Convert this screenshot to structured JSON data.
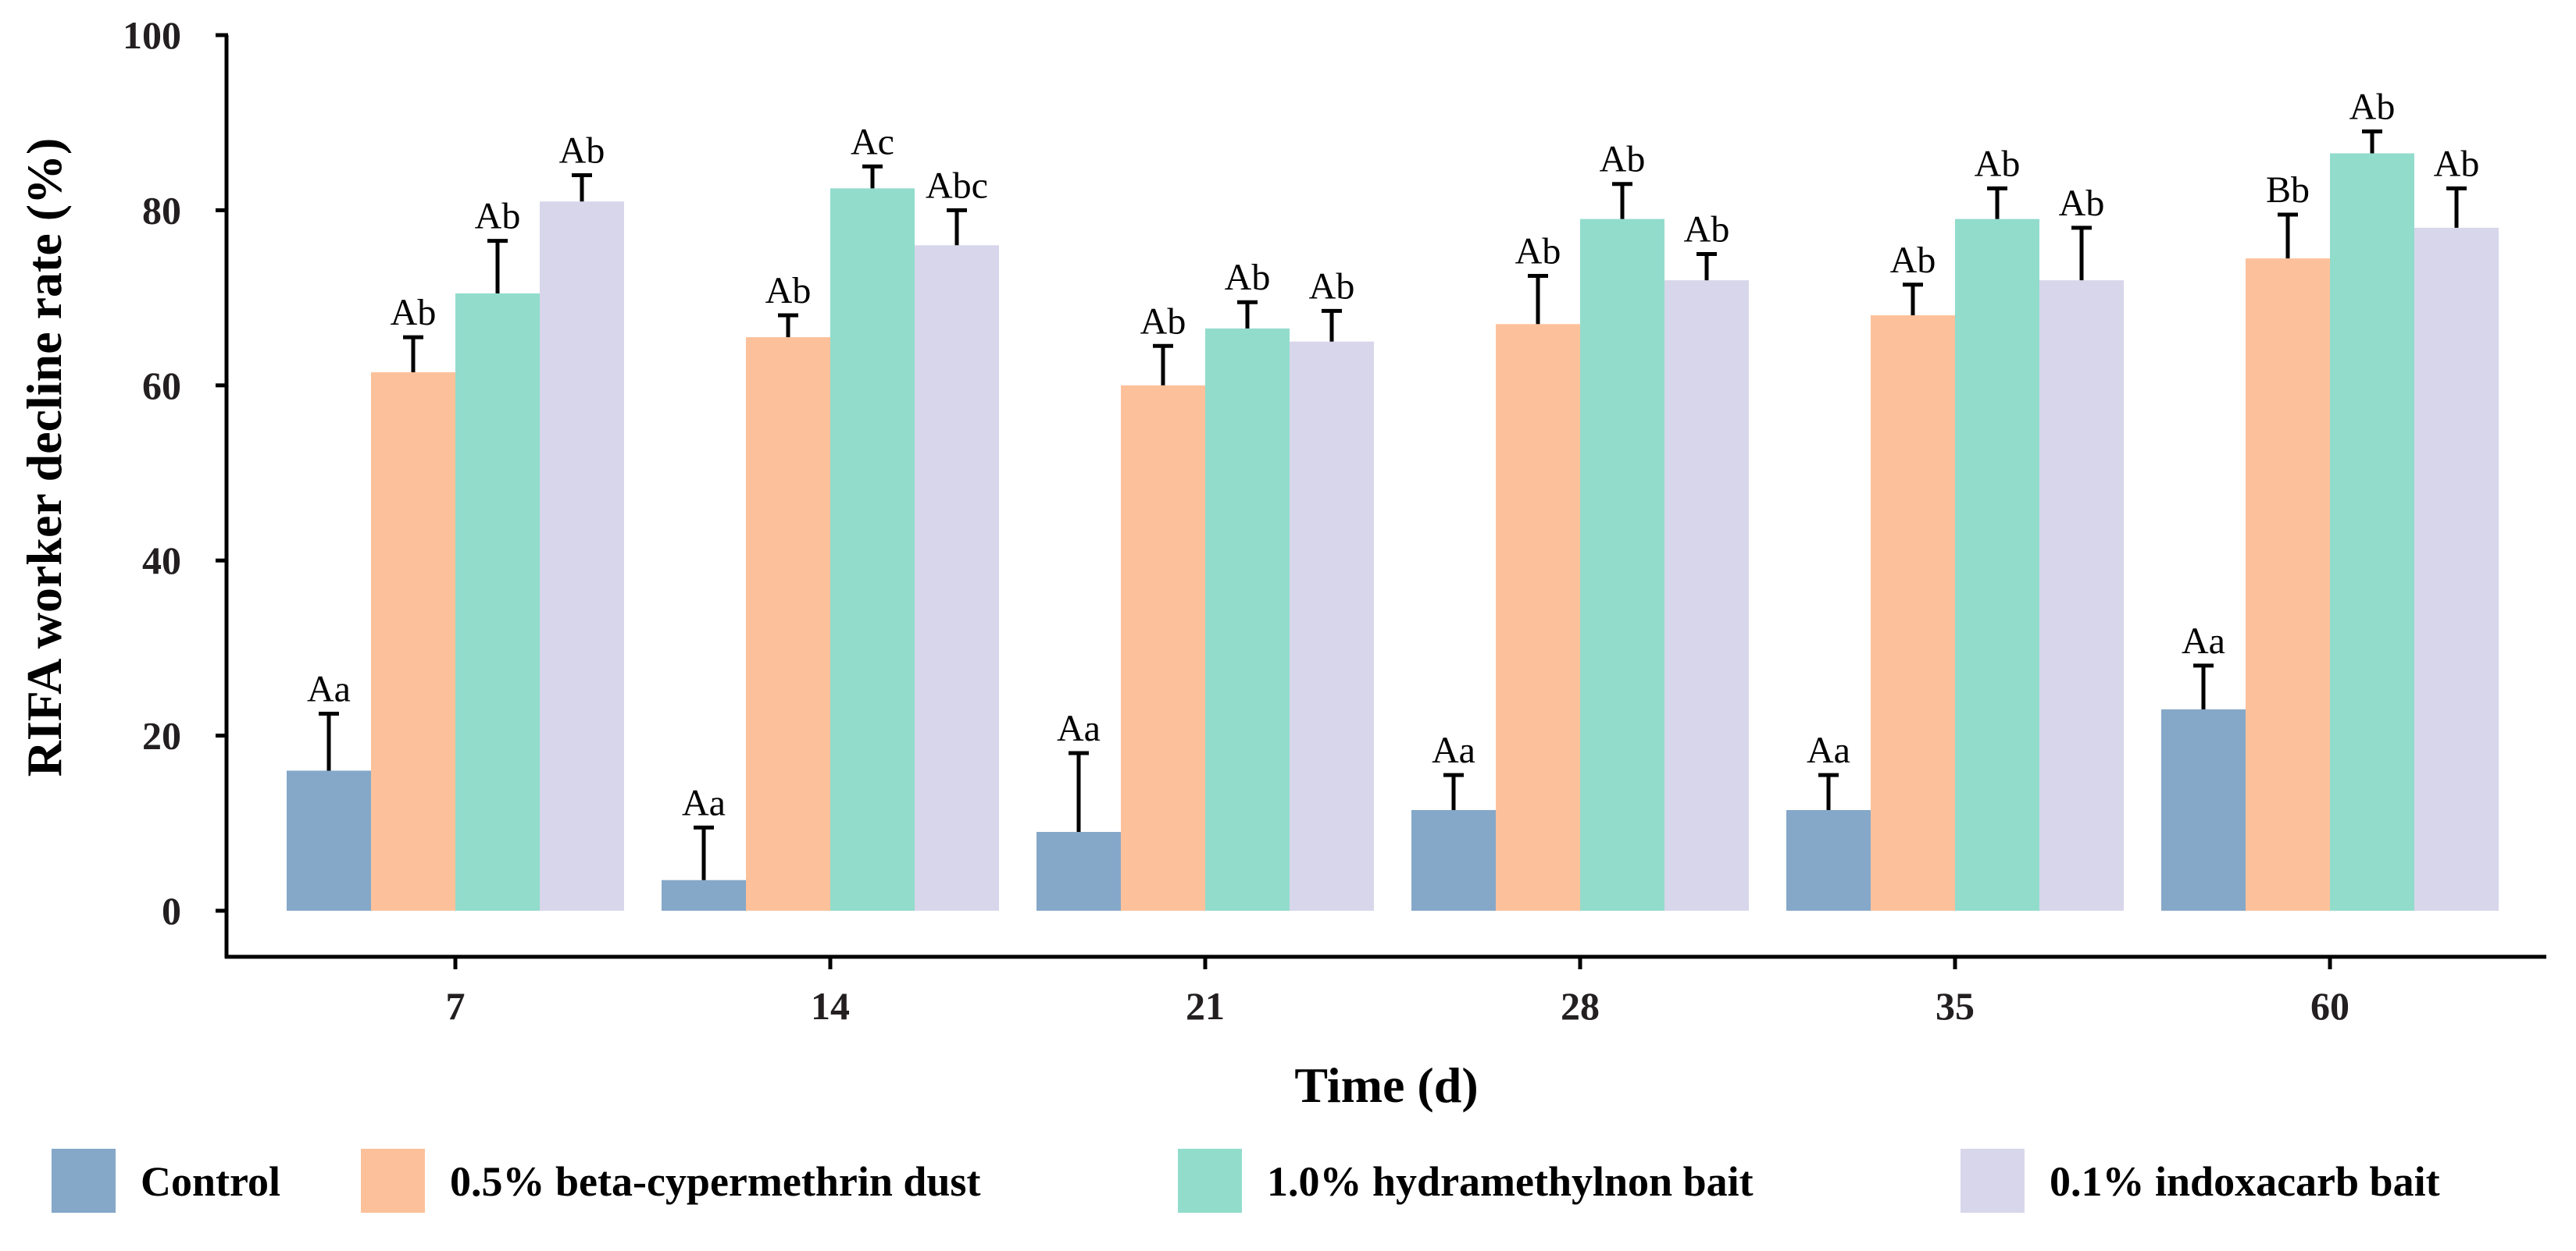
{
  "chart_data": {
    "type": "bar",
    "title": "",
    "xlabel": "Time (d)",
    "ylabel": "RIFA worker decline rate (%)",
    "ylim": [
      0,
      100
    ],
    "yticks": [
      0,
      20,
      40,
      60,
      80,
      100
    ],
    "grid": false,
    "legend_position": "bottom",
    "categories": [
      "7",
      "14",
      "21",
      "28",
      "35",
      "60"
    ],
    "series": [
      {
        "name": "Control",
        "color": "#85a8c9",
        "values": [
          16,
          3.5,
          9,
          11.5,
          11.5,
          23
        ],
        "errors": [
          6.5,
          6,
          9,
          4,
          4,
          5
        ],
        "labels": [
          "Aa",
          "Aa",
          "Aa",
          "Aa",
          "Aa",
          "Aa"
        ]
      },
      {
        "name": "0.5% beta-cypermethrin dust",
        "color": "#fcc19b",
        "values": [
          61.5,
          65.5,
          60,
          67,
          68,
          74.5
        ],
        "errors": [
          4,
          2.5,
          4.5,
          5.5,
          3.5,
          5
        ],
        "labels": [
          "Ab",
          "Ab",
          "Ab",
          "Ab",
          "Ab",
          "Bb"
        ]
      },
      {
        "name": "1.0% hydramethylnon bait",
        "color": "#92dccc",
        "values": [
          70.5,
          82.5,
          66.5,
          79,
          79,
          86.5
        ],
        "errors": [
          6,
          2.5,
          3,
          4,
          3.5,
          2.5
        ],
        "labels": [
          "Ab",
          "Ac",
          "Ab",
          "Ab",
          "Ab",
          "Ab"
        ]
      },
      {
        "name": "0.1% indoxacarb bait",
        "color": "#d8d6ea",
        "values": [
          81,
          76,
          65,
          72,
          72,
          78
        ],
        "errors": [
          3,
          4,
          3.5,
          3,
          6,
          4.5
        ],
        "labels": [
          "Ab",
          "Abc",
          "Ab",
          "Ab",
          "Ab",
          "Ab"
        ]
      }
    ]
  }
}
